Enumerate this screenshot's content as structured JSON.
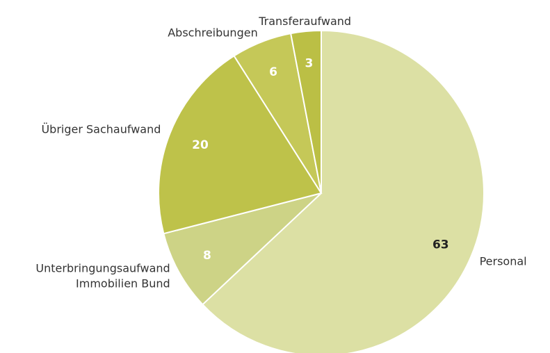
{
  "chart_data": {
    "type": "pie",
    "categories": [
      "Personal",
      "Unterbringungsaufwand\nImmobilien Bund",
      "Übriger Sachaufwand",
      "Abschreibungen",
      "Transferaufwand"
    ],
    "values": [
      63,
      8,
      20,
      6,
      3
    ],
    "colors": [
      "#dce0a4",
      "#cdd386",
      "#bec24a",
      "#c5c858",
      "#bbbf45"
    ],
    "value_label_colors": [
      "#222222",
      "#ffffff",
      "#ffffff",
      "#ffffff",
      "#ffffff"
    ]
  }
}
